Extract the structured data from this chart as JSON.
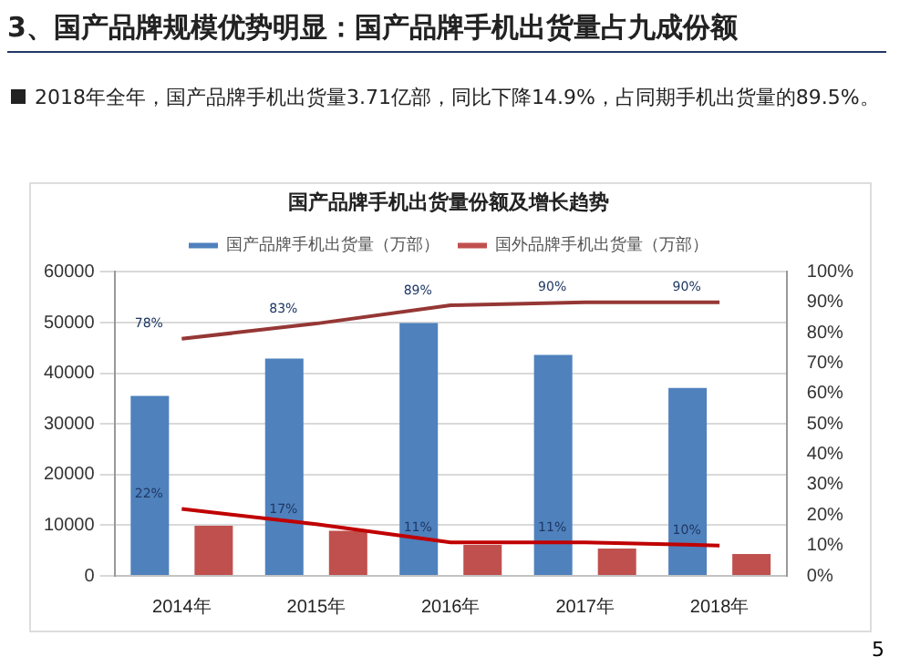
{
  "chart_data": {
    "type": "bar",
    "title": "国产品牌手机出货量份额及增长趋势",
    "annotations": [
      "3、国产品牌规模优势明显：国产品牌手机出货量占九成份额",
      "2018年全年，国产品牌手机出货量3.71亿部，同比下降14.9%，占同期手机出货量的89.5%。",
      "5"
    ],
    "categories": [
      "2014年",
      "2015年",
      "2016年",
      "2017年",
      "2018年"
    ],
    "series": [
      {
        "name": "国产品牌手机出货量（万部）",
        "color": "#4f81bd",
        "values": [
          35500,
          42900,
          49900,
          43600,
          37100
        ]
      },
      {
        "name": "国外品牌手机出货量（万部）",
        "color": "#c0504d",
        "values": [
          9900,
          8900,
          6100,
          5400,
          4300
        ]
      },
      {
        "type": "line",
        "axis": "y2",
        "color": "#953735",
        "values": [
          78,
          83,
          89,
          90,
          90
        ],
        "value_labels": [
          "78%",
          "83%",
          "89%",
          "90%",
          "90%"
        ]
      },
      {
        "type": "line",
        "axis": "y2",
        "color": "#c00000",
        "values": [
          22,
          17,
          11,
          11,
          10
        ],
        "value_labels": [
          "22%",
          "17%",
          "11%",
          "11%",
          "10%"
        ]
      }
    ],
    "ylim": [
      0,
      60000
    ],
    "yticks": [
      0,
      10000,
      20000,
      30000,
      40000,
      50000,
      60000
    ],
    "y2lim": [
      0,
      100
    ],
    "y2ticks": [
      {
        "value": 0,
        "label": "0%"
      },
      {
        "value": 10,
        "label": "10%"
      },
      {
        "value": 20,
        "label": "20%"
      },
      {
        "value": 30,
        "label": "30%"
      },
      {
        "value": 40,
        "label": "40%"
      },
      {
        "value": 50,
        "label": "50%"
      },
      {
        "value": 60,
        "label": "60%"
      },
      {
        "value": 70,
        "label": "70%"
      },
      {
        "value": 80,
        "label": "80%"
      },
      {
        "value": 90,
        "label": "90%"
      },
      {
        "value": 100,
        "label": "100%"
      }
    ],
    "grid": "y",
    "legend": "top",
    "marker": "none"
  }
}
